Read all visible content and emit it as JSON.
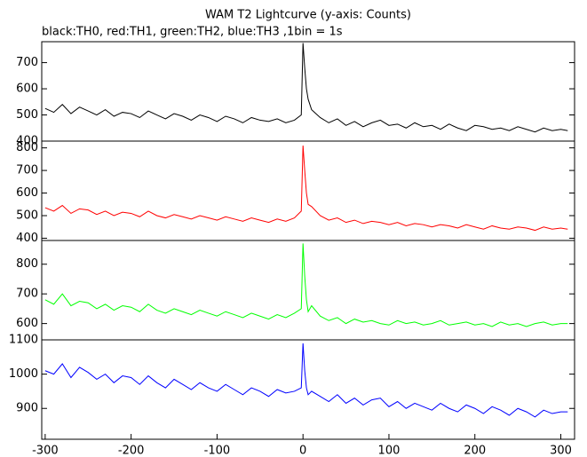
{
  "title": "WAM T2 Lightcurve (y-axis: Counts)",
  "subtitle": "black:TH0, red:TH1, green:TH2, blue:TH3 ,1bin = 1s",
  "chart_data": [
    {
      "type": "line",
      "color": "#000000",
      "xlim": [
        -304,
        316
      ],
      "ylim": [
        400,
        780
      ],
      "yticks": [
        400,
        500,
        600,
        700
      ],
      "x": [
        -300,
        -290,
        -280,
        -270,
        -260,
        -250,
        -240,
        -230,
        -220,
        -210,
        -200,
        -190,
        -180,
        -170,
        -160,
        -150,
        -140,
        -130,
        -120,
        -110,
        -100,
        -90,
        -80,
        -70,
        -60,
        -50,
        -40,
        -30,
        -20,
        -10,
        -2,
        0,
        2,
        4,
        6,
        10,
        20,
        30,
        40,
        50,
        60,
        70,
        80,
        90,
        100,
        110,
        120,
        130,
        140,
        150,
        160,
        170,
        180,
        190,
        200,
        210,
        220,
        230,
        240,
        250,
        260,
        270,
        280,
        290,
        300,
        308
      ],
      "values": [
        525,
        510,
        540,
        505,
        530,
        515,
        500,
        520,
        495,
        510,
        505,
        490,
        515,
        500,
        485,
        505,
        495,
        480,
        500,
        490,
        475,
        495,
        485,
        470,
        490,
        480,
        475,
        485,
        470,
        480,
        500,
        775,
        680,
        600,
        560,
        520,
        490,
        470,
        485,
        460,
        475,
        455,
        470,
        480,
        460,
        465,
        450,
        470,
        455,
        460,
        445,
        465,
        450,
        440,
        460,
        455,
        445,
        450,
        440,
        455,
        445,
        435,
        450,
        440,
        445,
        440
      ]
    },
    {
      "type": "line",
      "color": "#ff0000",
      "xlim": [
        -304,
        316
      ],
      "ylim": [
        390,
        830
      ],
      "yticks": [
        400,
        500,
        600,
        700,
        800
      ],
      "x": [
        -300,
        -290,
        -280,
        -270,
        -260,
        -250,
        -240,
        -230,
        -220,
        -210,
        -200,
        -190,
        -180,
        -170,
        -160,
        -150,
        -140,
        -130,
        -120,
        -110,
        -100,
        -90,
        -80,
        -70,
        -60,
        -50,
        -40,
        -30,
        -20,
        -10,
        -2,
        0,
        2,
        4,
        6,
        10,
        20,
        30,
        40,
        50,
        60,
        70,
        80,
        90,
        100,
        110,
        120,
        130,
        140,
        150,
        160,
        170,
        180,
        190,
        200,
        210,
        220,
        230,
        240,
        250,
        260,
        270,
        280,
        290,
        300,
        308
      ],
      "values": [
        535,
        520,
        545,
        510,
        530,
        525,
        505,
        520,
        500,
        515,
        510,
        495,
        520,
        500,
        490,
        505,
        495,
        485,
        500,
        490,
        480,
        495,
        485,
        475,
        490,
        480,
        470,
        485,
        475,
        490,
        520,
        810,
        700,
        600,
        550,
        540,
        500,
        480,
        490,
        470,
        480,
        465,
        475,
        470,
        460,
        470,
        455,
        465,
        460,
        450,
        460,
        455,
        445,
        460,
        450,
        440,
        455,
        445,
        440,
        450,
        445,
        435,
        450,
        440,
        445,
        440
      ]
    },
    {
      "type": "line",
      "color": "#00ff00",
      "xlim": [
        -304,
        316
      ],
      "ylim": [
        545,
        880
      ],
      "yticks": [
        600,
        700,
        800
      ],
      "x": [
        -300,
        -290,
        -280,
        -270,
        -260,
        -250,
        -240,
        -230,
        -220,
        -210,
        -200,
        -190,
        -180,
        -170,
        -160,
        -150,
        -140,
        -130,
        -120,
        -110,
        -100,
        -90,
        -80,
        -70,
        -60,
        -50,
        -40,
        -30,
        -20,
        -10,
        -2,
        0,
        2,
        4,
        6,
        10,
        20,
        30,
        40,
        50,
        60,
        70,
        80,
        90,
        100,
        110,
        120,
        130,
        140,
        150,
        160,
        170,
        180,
        190,
        200,
        210,
        220,
        230,
        240,
        250,
        260,
        270,
        280,
        290,
        300,
        308
      ],
      "values": [
        680,
        665,
        700,
        660,
        675,
        670,
        650,
        665,
        645,
        660,
        655,
        640,
        665,
        645,
        635,
        650,
        640,
        630,
        645,
        635,
        625,
        640,
        630,
        620,
        635,
        625,
        615,
        630,
        620,
        635,
        650,
        870,
        760,
        680,
        640,
        660,
        625,
        610,
        620,
        600,
        615,
        605,
        610,
        600,
        595,
        610,
        600,
        605,
        595,
        600,
        610,
        595,
        600,
        605,
        595,
        600,
        590,
        605,
        595,
        600,
        590,
        600,
        605,
        595,
        600,
        600
      ]
    },
    {
      "type": "line",
      "color": "#0000ff",
      "xlim": [
        -304,
        316
      ],
      "ylim": [
        810,
        1100
      ],
      "yticks": [
        900,
        1000,
        1100
      ],
      "xticks": [
        -300,
        -200,
        -100,
        0,
        100,
        200,
        300
      ],
      "x": [
        -300,
        -290,
        -280,
        -270,
        -260,
        -250,
        -240,
        -230,
        -220,
        -210,
        -200,
        -190,
        -180,
        -170,
        -160,
        -150,
        -140,
        -130,
        -120,
        -110,
        -100,
        -90,
        -80,
        -70,
        -60,
        -50,
        -40,
        -30,
        -20,
        -10,
        -2,
        0,
        2,
        4,
        6,
        10,
        20,
        30,
        40,
        50,
        60,
        70,
        80,
        90,
        100,
        110,
        120,
        130,
        140,
        150,
        160,
        170,
        180,
        190,
        200,
        210,
        220,
        230,
        240,
        250,
        260,
        270,
        280,
        290,
        300,
        308
      ],
      "values": [
        1010,
        1000,
        1030,
        990,
        1020,
        1005,
        985,
        1000,
        975,
        995,
        990,
        970,
        995,
        975,
        960,
        985,
        970,
        955,
        975,
        960,
        950,
        970,
        955,
        940,
        960,
        950,
        935,
        955,
        945,
        950,
        960,
        1090,
        1010,
        960,
        940,
        950,
        935,
        920,
        940,
        915,
        930,
        910,
        925,
        930,
        905,
        920,
        900,
        915,
        905,
        895,
        915,
        900,
        890,
        910,
        900,
        885,
        905,
        895,
        880,
        900,
        890,
        875,
        895,
        885,
        890,
        890
      ]
    }
  ]
}
